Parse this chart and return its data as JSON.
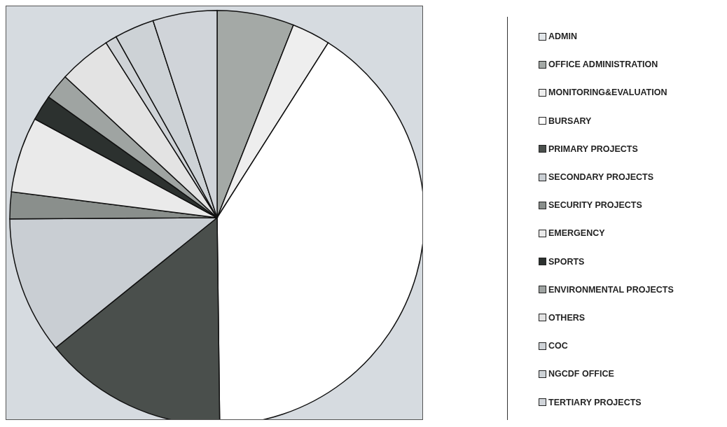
{
  "chart_data": {
    "type": "pie",
    "categories": [
      "ADMIN",
      "OFFICE ADMINISTRATION",
      "MONITORING&EVALUATION",
      "BURSARY",
      "PRIMARY PROJECTS",
      "SECONDARY PROJECTS",
      "SECURITY PROJECTS",
      "EMERGENCY",
      "SPORTS",
      "ENVIRONMENTAL PROJECTS",
      "OTHERS",
      "COC",
      "NGCDF OFFICE",
      "TERTIARY PROJECTS"
    ],
    "values": [
      0,
      6.0,
      3.0,
      40.8,
      14.4,
      10.7,
      2.1,
      5.9,
      2.0,
      2.0,
      4.1,
      0.9,
      3.1,
      5.0
    ],
    "colors": [
      "#e2e6e9",
      "#a4a9a6",
      "#eeeeee",
      "#ffffff",
      "#4a4f4c",
      "#c9ced3",
      "#8a8f8c",
      "#eaeaea",
      "#2c312f",
      "#9fa4a2",
      "#e3e3e3",
      "#cfd3d7",
      "#cdd2d6",
      "#d0d4d9"
    ],
    "legend": "right"
  }
}
